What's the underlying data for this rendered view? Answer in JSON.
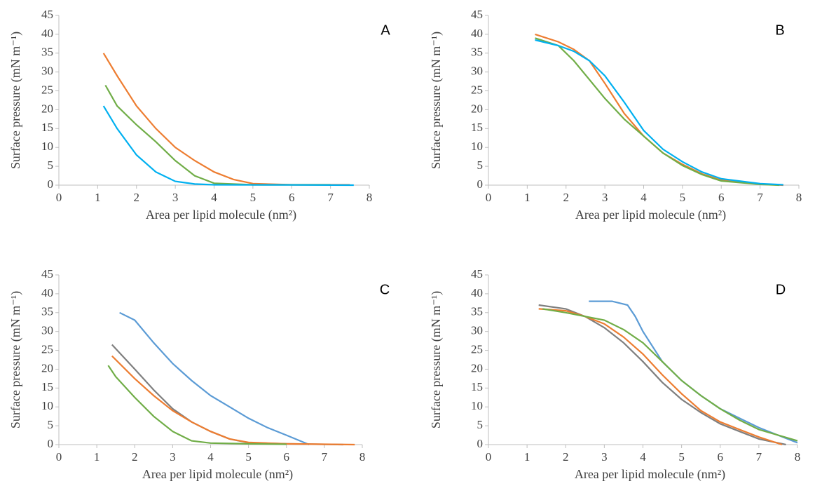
{
  "chart_data": [
    {
      "type": "line",
      "title": "A",
      "x_label": "Area per lipid molecule (nm²)",
      "y_label": "Surface pressure (mN m⁻¹)",
      "xlim": [
        0,
        8
      ],
      "ylim": [
        0,
        45
      ],
      "xticks": [
        0,
        1,
        2,
        3,
        4,
        5,
        6,
        7,
        8
      ],
      "yticks": [
        0,
        5,
        10,
        15,
        20,
        25,
        30,
        35,
        40,
        45
      ],
      "series": [
        {
          "color": "#ed7d31",
          "x": [
            1.15,
            1.5,
            2,
            2.5,
            3,
            3.5,
            4,
            4.5,
            5,
            6,
            7.5
          ],
          "values": [
            35,
            29,
            21,
            15,
            10,
            6.5,
            3.5,
            1.5,
            0.4,
            0.1,
            0.1
          ]
        },
        {
          "color": "#70ad47",
          "x": [
            1.2,
            1.5,
            2,
            2.5,
            3,
            3.5,
            4,
            5,
            7
          ],
          "values": [
            26.5,
            21,
            16,
            11.5,
            6.5,
            2.5,
            0.5,
            0.1,
            0.1
          ]
        },
        {
          "color": "#00b0f0",
          "x": [
            1.15,
            1.5,
            2,
            2.5,
            3,
            3.5,
            4,
            6,
            7.6
          ],
          "values": [
            21,
            15,
            8,
            3.5,
            1,
            0.3,
            0.1,
            0.05,
            0
          ]
        }
      ]
    },
    {
      "type": "line",
      "title": "B",
      "x_label": "Area per lipid molecule (nm²)",
      "y_label": "Surface pressure (mN m⁻¹)",
      "xlim": [
        0,
        8
      ],
      "ylim": [
        0,
        45
      ],
      "xticks": [
        0,
        1,
        2,
        3,
        4,
        5,
        6,
        7,
        8
      ],
      "yticks": [
        0,
        5,
        10,
        15,
        20,
        25,
        30,
        35,
        40,
        45
      ],
      "series": [
        {
          "color": "#ed7d31",
          "x": [
            1.2,
            1.8,
            2.2,
            2.6,
            3,
            3.5,
            4,
            4.5,
            5,
            5.5,
            6,
            7,
            7.6
          ],
          "values": [
            40,
            38,
            36,
            33,
            27,
            19,
            13,
            8.5,
            5.5,
            3,
            1.3,
            0.3,
            0
          ]
        },
        {
          "color": "#70ad47",
          "x": [
            1.2,
            1.8,
            2.2,
            2.6,
            3,
            3.5,
            4,
            4.5,
            5,
            5.5,
            6,
            7,
            7.5
          ],
          "values": [
            39,
            37,
            33,
            28,
            23,
            17.5,
            13,
            8.5,
            5.2,
            2.8,
            1.1,
            0.2,
            0
          ]
        },
        {
          "color": "#00b0f0",
          "x": [
            1.2,
            1.8,
            2.2,
            2.6,
            3,
            3.5,
            4,
            4.5,
            5,
            5.5,
            6,
            7,
            7.6
          ],
          "values": [
            38.5,
            37,
            35.5,
            33,
            29,
            22,
            14.5,
            9.5,
            6.2,
            3.5,
            1.7,
            0.4,
            0.1
          ]
        }
      ]
    },
    {
      "type": "line",
      "title": "C",
      "x_label": "Area per lipid molecule (nm²)",
      "y_label": "Surface pressure (mN m⁻¹)",
      "xlim": [
        0,
        8
      ],
      "ylim": [
        0,
        45
      ],
      "xticks": [
        0,
        1,
        2,
        3,
        4,
        5,
        6,
        7,
        8
      ],
      "yticks": [
        0,
        5,
        10,
        15,
        20,
        25,
        30,
        35,
        40,
        45
      ],
      "series": [
        {
          "color": "#5b9bd5",
          "x": [
            1.6,
            2,
            2.5,
            3,
            3.5,
            4,
            4.5,
            5,
            5.5,
            6,
            6.6
          ],
          "values": [
            35,
            33,
            27,
            21.5,
            17,
            13,
            10,
            7,
            4.5,
            2.5,
            0
          ]
        },
        {
          "color": "#7f7f7f",
          "x": [
            1.4,
            2,
            2.5,
            3,
            3.5,
            4,
            4.5,
            5,
            6,
            7.5
          ],
          "values": [
            26.5,
            20,
            14.5,
            9.5,
            6,
            3.5,
            1.5,
            0.5,
            0.2,
            0
          ]
        },
        {
          "color": "#ed7d31",
          "x": [
            1.4,
            2,
            2.5,
            3,
            3.5,
            4,
            4.5,
            5,
            6,
            7.8
          ],
          "values": [
            23.5,
            17.5,
            13,
            9,
            6,
            3.5,
            1.5,
            0.6,
            0.2,
            0
          ]
        },
        {
          "color": "#70ad47",
          "x": [
            1.3,
            1.5,
            2,
            2.5,
            3,
            3.5,
            4,
            5,
            6
          ],
          "values": [
            21,
            18,
            12.5,
            7.5,
            3.5,
            1,
            0.4,
            0.2,
            0.1
          ]
        }
      ]
    },
    {
      "type": "line",
      "title": "D",
      "x_label": "Area per lipid molecule (nm²)",
      "y_label": "Surface pressure (mN m⁻¹)",
      "xlim": [
        0,
        8
      ],
      "ylim": [
        0,
        45
      ],
      "xticks": [
        0,
        1,
        2,
        3,
        4,
        5,
        6,
        7,
        8
      ],
      "yticks": [
        0,
        5,
        10,
        15,
        20,
        25,
        30,
        35,
        40,
        45
      ],
      "series": [
        {
          "color": "#5b9bd5",
          "x": [
            2.6,
            3.2,
            3.6,
            3.8,
            4,
            4.5,
            5,
            5.5,
            6,
            6.5,
            7,
            7.5,
            8
          ],
          "values": [
            38,
            38,
            37,
            34,
            30,
            22,
            17,
            13,
            9.5,
            7,
            4.5,
            2.5,
            0.5
          ]
        },
        {
          "color": "#7f7f7f",
          "x": [
            1.3,
            2,
            2.5,
            3,
            3.5,
            4,
            4.5,
            5,
            5.5,
            6,
            6.5,
            7,
            7.7
          ],
          "values": [
            37,
            36,
            34,
            31,
            27,
            22,
            16.5,
            12,
            8.5,
            5.5,
            3.5,
            1.5,
            0
          ]
        },
        {
          "color": "#ed7d31",
          "x": [
            1.3,
            2,
            2.5,
            3,
            3.5,
            4,
            4.5,
            5,
            5.5,
            6,
            6.5,
            7,
            7.6
          ],
          "values": [
            36,
            35.5,
            34,
            32,
            28.5,
            24,
            18.5,
            13.5,
            9,
            6,
            4,
            2,
            0
          ]
        },
        {
          "color": "#70ad47",
          "x": [
            1.4,
            2,
            2.5,
            3,
            3.5,
            4,
            4.5,
            5,
            5.5,
            6,
            6.5,
            7,
            8
          ],
          "values": [
            36,
            35,
            34,
            33,
            30.5,
            27,
            22,
            17,
            13,
            9.5,
            6.5,
            4,
            1
          ]
        }
      ]
    }
  ]
}
